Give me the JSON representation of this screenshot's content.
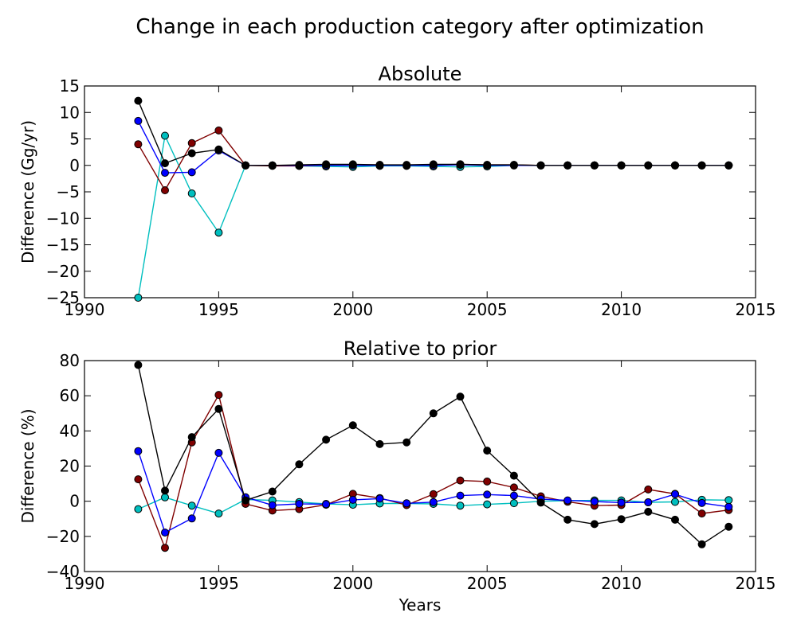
{
  "figure_title": "Change in each production category after optimization",
  "colors": {
    "blue": "#0000ff",
    "darkred": "#800000",
    "cyan": "#00bfbf",
    "black": "#000000"
  },
  "chart_data": [
    {
      "type": "line",
      "title": "Absolute",
      "xlabel": "",
      "ylabel": "Difference (Gg/yr)",
      "xlim": [
        1990,
        2015
      ],
      "ylim": [
        -25,
        15
      ],
      "xticks": [
        1990,
        1995,
        2000,
        2005,
        2010,
        2015
      ],
      "yticks": [
        -25,
        -20,
        -15,
        -10,
        -5,
        0,
        5,
        10,
        15
      ],
      "xtick_labels": [
        "1990",
        "1995",
        "2000",
        "2005",
        "2010",
        "2015"
      ],
      "ytick_labels": [
        "−25",
        "−20",
        "−15",
        "−10",
        "−5",
        "0",
        "5",
        "10",
        "15"
      ],
      "x": [
        1992,
        1993,
        1994,
        1995,
        1996,
        1997,
        1998,
        1999,
        2000,
        2001,
        2002,
        2003,
        2004,
        2005,
        2006,
        2007,
        2008,
        2009,
        2010,
        2011,
        2012,
        2013,
        2014
      ],
      "series": [
        {
          "color": "#00bfbf",
          "values": [
            -25,
            5.6,
            -5.3,
            -12.7,
            0,
            0,
            -0.1,
            -0.2,
            -0.3,
            -0.1,
            -0.1,
            -0.2,
            -0.3,
            -0.2,
            0,
            0,
            0,
            0,
            0,
            0,
            0,
            0,
            0
          ]
        },
        {
          "color": "#800000",
          "values": [
            4,
            -4.7,
            4.2,
            6.6,
            0,
            -0.1,
            -0.1,
            0,
            0.1,
            0.1,
            0,
            0.1,
            0.2,
            0.1,
            0.1,
            0,
            0,
            0,
            0,
            0,
            0,
            0,
            0
          ]
        },
        {
          "color": "#0000ff",
          "values": [
            8.4,
            -1.4,
            -1.3,
            2.8,
            0,
            0,
            0,
            0,
            0,
            0,
            0,
            0,
            0.1,
            0,
            0,
            0,
            0,
            0,
            0,
            0,
            0,
            0,
            0
          ]
        },
        {
          "color": "#000000",
          "values": [
            12.2,
            0.4,
            2.3,
            3,
            0,
            0,
            0.1,
            0.2,
            0.2,
            0.1,
            0.1,
            0.2,
            0.2,
            0.1,
            0.1,
            0,
            0,
            0,
            0,
            0,
            0,
            0,
            0
          ]
        }
      ]
    },
    {
      "type": "line",
      "title": "Relative to prior",
      "xlabel": "Years",
      "ylabel": "Difference (%)",
      "xlim": [
        1990,
        2015
      ],
      "ylim": [
        -40,
        80
      ],
      "xticks": [
        1990,
        1995,
        2000,
        2005,
        2010,
        2015
      ],
      "yticks": [
        -40,
        -20,
        0,
        20,
        40,
        60,
        80
      ],
      "xtick_labels": [
        "1990",
        "1995",
        "2000",
        "2005",
        "2010",
        "2015"
      ],
      "ytick_labels": [
        "−40",
        "−20",
        "0",
        "20",
        "40",
        "60",
        "80"
      ],
      "x": [
        1992,
        1993,
        1994,
        1995,
        1996,
        1997,
        1998,
        1999,
        2000,
        2001,
        2002,
        2003,
        2004,
        2005,
        2006,
        2007,
        2008,
        2009,
        2010,
        2011,
        2012,
        2013,
        2014
      ],
      "series": [
        {
          "color": "#00bfbf",
          "values": [
            -4.5,
            2.2,
            -2.5,
            -7,
            1,
            0.5,
            -0.5,
            -1.5,
            -2,
            -1.3,
            -1.3,
            -1.5,
            -2.5,
            -1.8,
            -1.1,
            0,
            0.3,
            0.5,
            0.5,
            -0.6,
            -0.4,
            0.8,
            0.6
          ]
        },
        {
          "color": "#800000",
          "values": [
            12.5,
            -26.5,
            33.5,
            60.5,
            -1.5,
            -5.3,
            -4.5,
            -2,
            4.2,
            1.8,
            -2.2,
            4,
            11.8,
            11.2,
            7.8,
            2.8,
            -0.3,
            -2.5,
            -2.2,
            6.7,
            4.2,
            -7,
            -5
          ]
        },
        {
          "color": "#0000ff",
          "values": [
            28.5,
            -17.8,
            -9.8,
            27.5,
            2.3,
            -2.3,
            -1.5,
            -1.7,
            0.8,
            1.5,
            -1.2,
            -0.5,
            3.2,
            3.8,
            3.2,
            1.2,
            0.5,
            -0.2,
            -0.8,
            -0.6,
            4,
            -1,
            -3.2
          ]
        },
        {
          "color": "#000000",
          "values": [
            77.5,
            6,
            36.5,
            52.5,
            0.5,
            5.5,
            21,
            35,
            43.2,
            32.5,
            33.5,
            50,
            59.5,
            28.8,
            14.5,
            -0.8,
            -10.5,
            -13,
            -10.2,
            -6,
            -10.5,
            -24.5,
            -14.5
          ]
        }
      ]
    }
  ]
}
